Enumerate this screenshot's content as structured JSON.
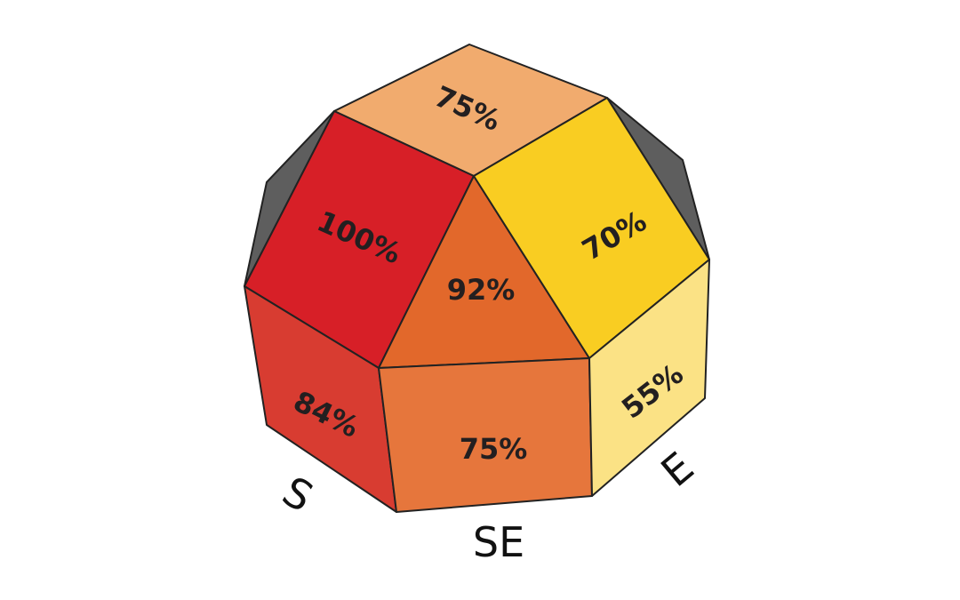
{
  "faces": {
    "top": {
      "label": "75%",
      "color": "#f1ab6e"
    },
    "upper_left": {
      "label": "100%",
      "color": "#d71f27"
    },
    "upper_center": {
      "label": "92%",
      "color": "#e2682b"
    },
    "upper_right": {
      "label": "70%",
      "color": "#f9cd22"
    },
    "lower_left": {
      "label": "84%",
      "color": "#d83c31"
    },
    "lower_center": {
      "label": "75%",
      "color": "#e6763c"
    },
    "lower_right": {
      "label": "55%",
      "color": "#fbe285"
    },
    "back_faces": {
      "color": "#5e5e5e"
    }
  },
  "directions": {
    "south": "S",
    "southeast": "SE",
    "east": "E"
  }
}
